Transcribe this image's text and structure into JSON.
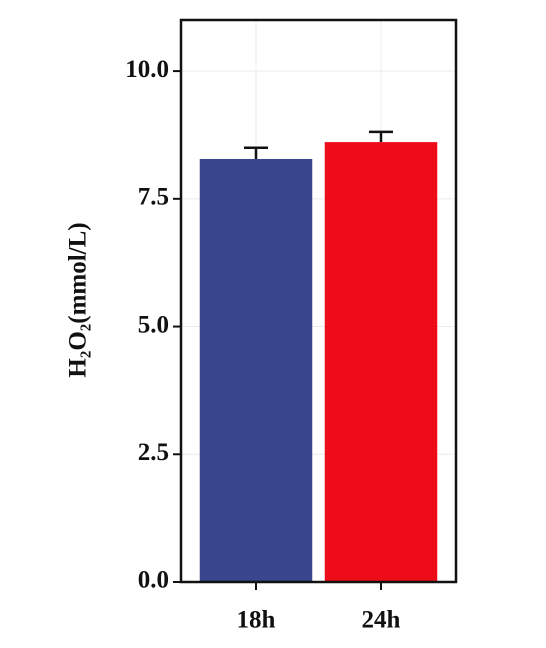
{
  "chart_data": {
    "type": "bar",
    "y_label": "H₂O₂(mmol/L)",
    "categories": [
      "18h",
      "24h"
    ],
    "values": [
      8.28,
      8.61
    ],
    "errors": [
      0.22,
      0.2
    ],
    "colors": [
      "#3a478c",
      "#ee0c18"
    ],
    "ylim": [
      0,
      11
    ],
    "yticks": [
      {
        "value": 0,
        "label": "0.0"
      },
      2.5,
      {
        "value": 5,
        "label": "5.0"
      },
      7.5,
      {
        "value": 10,
        "label": "10.0"
      }
    ],
    "grid": true
  }
}
